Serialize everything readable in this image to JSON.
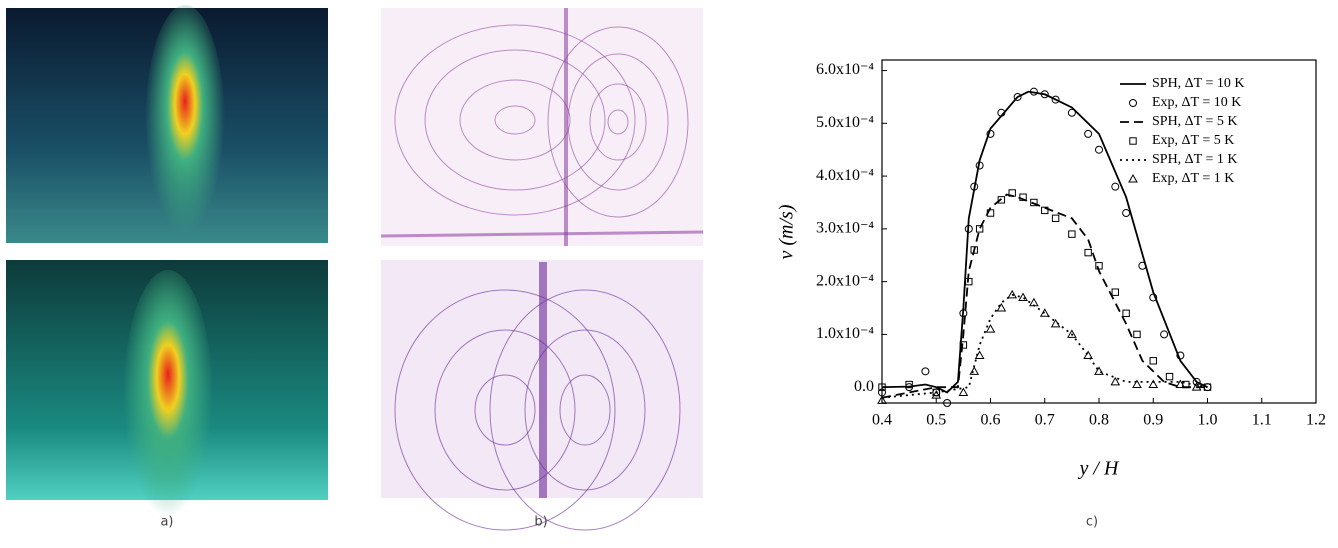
{
  "panel_labels": [
    "a)",
    "b)",
    "c)"
  ],
  "chart_data": {
    "type": "line",
    "xlabel": "y / H",
    "ylabel": "v (m/s)",
    "xlim": [
      0.4,
      1.2
    ],
    "ylim": [
      -3e-05,
      0.00062
    ],
    "xticks": [
      0.4,
      0.5,
      0.6,
      0.7,
      0.8,
      0.9,
      {
        "value": 1,
        "label": "1.0"
      },
      1.1,
      1.2
    ],
    "yticks": [
      {
        "value": 0,
        "label": "0.0"
      },
      {
        "value": 0.0001,
        "label": "1.0x10⁻⁴"
      },
      {
        "value": 0.0002,
        "label": "2.0x10⁻⁴"
      },
      {
        "value": 0.0003,
        "label": "3.0x10⁻⁴"
      },
      {
        "value": 0.0004,
        "label": "4.0x10⁻⁴"
      },
      {
        "value": 0.0005,
        "label": "5.0x10⁻⁴"
      },
      {
        "value": 0.0006,
        "label": "6.0x10⁻⁴"
      }
    ],
    "grid": false,
    "legend": "upper right",
    "series": [
      {
        "name": "SPH, ΔT = 10 K",
        "style": "solid",
        "color": "#000000",
        "x": [
          0.4,
          0.45,
          0.48,
          0.5,
          0.52,
          0.54,
          0.55,
          0.56,
          0.58,
          0.6,
          0.65,
          0.67,
          0.7,
          0.75,
          0.8,
          0.85,
          0.9,
          0.95,
          0.98,
          1.0
        ],
        "values": [
          0,
          1e-06,
          5e-06,
          0,
          -1e-05,
          1e-05,
          0.00015,
          0.00032,
          0.00043,
          0.00049,
          0.00055,
          0.00056,
          0.000555,
          0.00053,
          0.00048,
          0.00036,
          0.00018,
          5e-05,
          1e-05,
          0
        ]
      },
      {
        "name": "Exp, ΔT = 10 K",
        "style": "circle",
        "color": "#000000",
        "x": [
          0.4,
          0.45,
          0.48,
          0.5,
          0.52,
          0.55,
          0.56,
          0.57,
          0.58,
          0.6,
          0.62,
          0.65,
          0.68,
          0.7,
          0.72,
          0.75,
          0.78,
          0.8,
          0.83,
          0.85,
          0.88,
          0.9,
          0.92,
          0.95,
          0.98,
          1.0
        ],
        "values": [
          -1e-05,
          0,
          3e-05,
          -1e-05,
          -3e-05,
          0.00014,
          0.0003,
          0.00038,
          0.00042,
          0.00048,
          0.00052,
          0.00055,
          0.00056,
          0.000555,
          0.000545,
          0.00052,
          0.00048,
          0.00045,
          0.00038,
          0.00033,
          0.00023,
          0.00017,
          0.0001,
          6e-05,
          1e-05,
          0
        ]
      },
      {
        "name": "SPH, ΔT = 5 K",
        "style": "dashed",
        "color": "#000000",
        "x": [
          0.4,
          0.5,
          0.54,
          0.55,
          0.56,
          0.58,
          0.6,
          0.63,
          0.65,
          0.7,
          0.75,
          0.78,
          0.8,
          0.85,
          0.88,
          0.92,
          0.95,
          1.0
        ],
        "values": [
          -2e-05,
          0,
          0,
          0.0001,
          0.00022,
          0.0003,
          0.00034,
          0.000365,
          0.00036,
          0.00034,
          0.00032,
          0.00028,
          0.00022,
          0.00012,
          5e-05,
          1e-05,
          0,
          0
        ]
      },
      {
        "name": "Exp, ΔT = 5 K",
        "style": "square",
        "color": "#000000",
        "x": [
          0.4,
          0.45,
          0.5,
          0.55,
          0.56,
          0.57,
          0.58,
          0.6,
          0.62,
          0.64,
          0.66,
          0.68,
          0.7,
          0.72,
          0.75,
          0.78,
          0.8,
          0.83,
          0.85,
          0.87,
          0.9,
          0.93,
          0.96,
          1.0
        ],
        "values": [
          0,
          5e-06,
          -1e-05,
          8e-05,
          0.0002,
          0.00026,
          0.0003,
          0.00033,
          0.000355,
          0.000368,
          0.00036,
          0.00035,
          0.000335,
          0.00032,
          0.00029,
          0.000255,
          0.00023,
          0.00018,
          0.00014,
          0.0001,
          5e-05,
          2e-05,
          5e-06,
          0
        ]
      },
      {
        "name": "SPH, ΔT = 1 K",
        "style": "dotted",
        "color": "#000000",
        "x": [
          0.4,
          0.5,
          0.56,
          0.58,
          0.6,
          0.62,
          0.64,
          0.66,
          0.7,
          0.75,
          0.78,
          0.8,
          0.85,
          0.95,
          1.0
        ],
        "values": [
          -2e-05,
          -1e-05,
          0,
          8e-05,
          0.00013,
          0.00016,
          0.000175,
          0.00017,
          0.00014,
          0.0001,
          6e-05,
          3e-05,
          1e-05,
          1e-05,
          0
        ]
      },
      {
        "name": "Exp, ΔT = 1 K",
        "style": "triangle",
        "color": "#000000",
        "x": [
          0.4,
          0.5,
          0.55,
          0.57,
          0.58,
          0.6,
          0.62,
          0.64,
          0.66,
          0.68,
          0.7,
          0.72,
          0.75,
          0.78,
          0.8,
          0.83,
          0.87,
          0.9,
          0.95,
          0.98
        ],
        "values": [
          -2.5e-05,
          -1.5e-05,
          -1e-05,
          3e-05,
          6e-05,
          0.00011,
          0.00015,
          0.000175,
          0.00017,
          0.00016,
          0.00014,
          0.00012,
          0.0001,
          6e-05,
          3e-05,
          1e-05,
          5e-06,
          5e-06,
          5e-06,
          0
        ]
      }
    ]
  }
}
